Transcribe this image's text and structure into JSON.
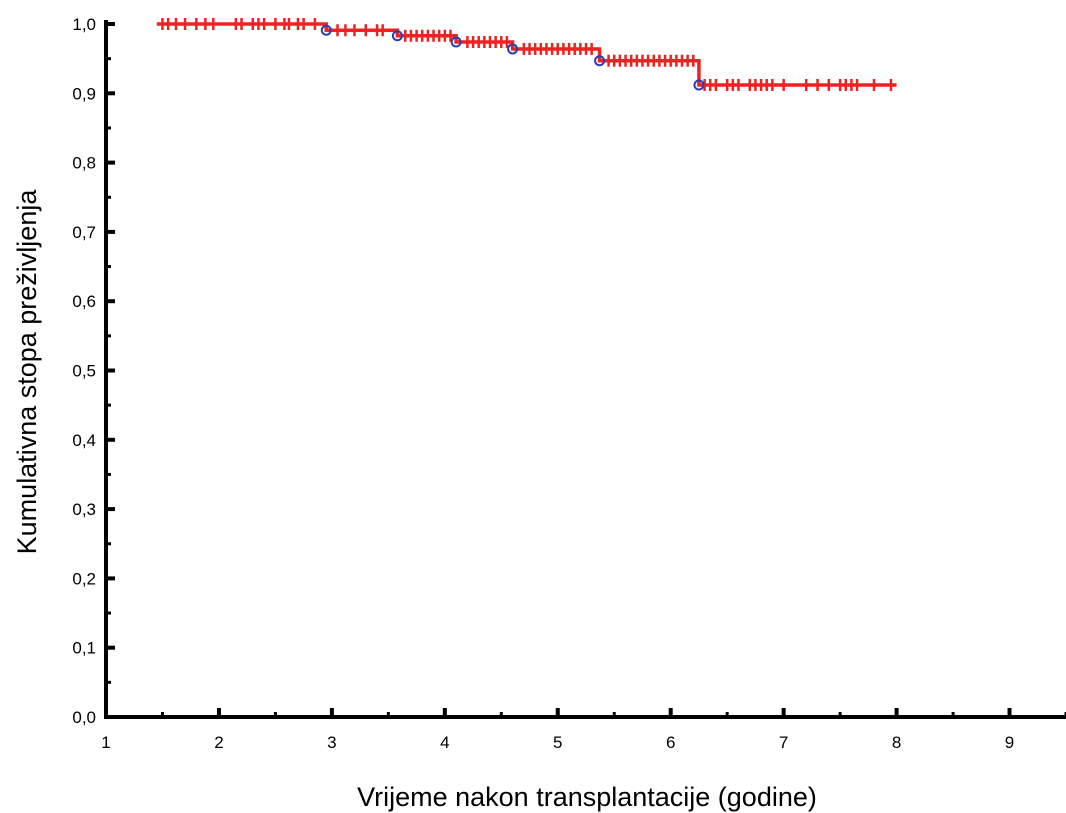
{
  "chart_data": {
    "type": "line",
    "title": "",
    "xlabel": "Vrijeme nakon transplantacije (godine)",
    "ylabel": "Kumulativna stopa preživljenja",
    "xlim": [
      1,
      9.5
    ],
    "ylim": [
      0,
      1
    ],
    "x_ticks": [
      1,
      2,
      3,
      4,
      5,
      6,
      7,
      8,
      9
    ],
    "x_tick_labels": [
      "1",
      "2",
      "3",
      "4",
      "5",
      "6",
      "7",
      "8",
      "9"
    ],
    "y_ticks": [
      0,
      0.1,
      0.2,
      0.3,
      0.4,
      0.5,
      0.6,
      0.7,
      0.8,
      0.9,
      1.0
    ],
    "y_tick_labels": [
      "0,0",
      "0,1",
      "0,2",
      "0,3",
      "0,4",
      "0,5",
      "0,6",
      "0,7",
      "0,8",
      "0,9",
      "1,0"
    ],
    "grid": false,
    "legend": "none",
    "series": [
      {
        "color": "#ee2222",
        "step_points": [
          {
            "x": 1.45,
            "y": 1.0
          },
          {
            "x": 2.95,
            "y": 0.991
          },
          {
            "x": 3.58,
            "y": 0.983
          },
          {
            "x": 4.1,
            "y": 0.974
          },
          {
            "x": 4.6,
            "y": 0.964
          },
          {
            "x": 5.37,
            "y": 0.947
          },
          {
            "x": 6.25,
            "y": 0.912
          },
          {
            "x": 8.0,
            "y": 0.912
          }
        ],
        "event_color": "#2a3fb0",
        "events": [
          {
            "x": 2.95,
            "y": 0.991
          },
          {
            "x": 3.58,
            "y": 0.983
          },
          {
            "x": 4.1,
            "y": 0.974
          },
          {
            "x": 4.6,
            "y": 0.964
          },
          {
            "x": 5.37,
            "y": 0.947
          },
          {
            "x": 6.25,
            "y": 0.912
          }
        ],
        "censored_x": [
          1.5,
          1.55,
          1.62,
          1.7,
          1.8,
          1.88,
          1.95,
          2.15,
          2.2,
          2.3,
          2.35,
          2.4,
          2.5,
          2.58,
          2.62,
          2.7,
          2.75,
          2.85,
          3.05,
          3.12,
          3.2,
          3.3,
          3.4,
          3.45,
          3.65,
          3.7,
          3.75,
          3.8,
          3.85,
          3.9,
          3.95,
          4.0,
          4.05,
          4.2,
          4.25,
          4.3,
          4.35,
          4.4,
          4.45,
          4.5,
          4.55,
          4.7,
          4.75,
          4.8,
          4.85,
          4.9,
          4.95,
          5.0,
          5.05,
          5.1,
          5.15,
          5.2,
          5.25,
          5.3,
          5.45,
          5.5,
          5.55,
          5.6,
          5.65,
          5.7,
          5.75,
          5.8,
          5.85,
          5.9,
          5.95,
          6.0,
          6.05,
          6.1,
          6.15,
          6.2,
          6.3,
          6.35,
          6.4,
          6.5,
          6.55,
          6.6,
          6.7,
          6.75,
          6.8,
          6.85,
          6.9,
          7.0,
          7.2,
          7.3,
          7.4,
          7.5,
          7.55,
          7.6,
          7.65,
          7.8,
          7.95
        ]
      }
    ]
  }
}
